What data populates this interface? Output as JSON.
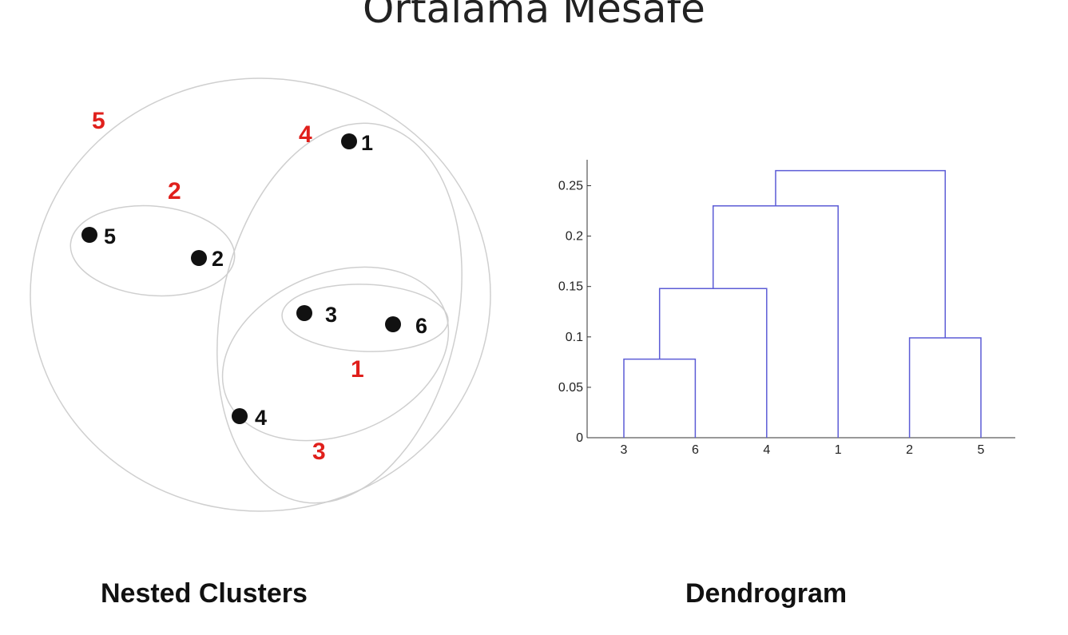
{
  "title": "Ortalama Mesafe",
  "colors": {
    "cluster_label": "#e0201c",
    "dendro_line": "#5c5cd6",
    "ellipse": "#cfcfcf",
    "point": "#111111"
  },
  "nested_clusters": {
    "caption": "Nested Clusters",
    "points": [
      {
        "id": "1",
        "label": "1"
      },
      {
        "id": "2",
        "label": "2"
      },
      {
        "id": "3",
        "label": "3"
      },
      {
        "id": "4",
        "label": "4"
      },
      {
        "id": "5",
        "label": "5"
      },
      {
        "id": "6",
        "label": "6"
      }
    ],
    "cluster_labels": [
      "1",
      "2",
      "3",
      "4",
      "5"
    ]
  },
  "dendrogram": {
    "caption": "Dendrogram"
  },
  "chart_data": {
    "type": "dendrogram",
    "leaf_order": [
      "3",
      "6",
      "4",
      "1",
      "2",
      "5"
    ],
    "y_ticks": [
      "0",
      "0.05",
      "0.1",
      "0.15",
      "0.2",
      "0.25"
    ],
    "ylim": [
      0,
      0.28
    ],
    "merges": [
      {
        "left": "3",
        "right": "6",
        "height": 0.078
      },
      {
        "left": "2",
        "right": "5",
        "height": 0.099
      },
      {
        "left": "3,6",
        "right": "4",
        "height": 0.148
      },
      {
        "left": "3,6,4",
        "right": "1",
        "height": 0.23
      },
      {
        "left": "3,6,4,1",
        "right": "2,5",
        "height": 0.265
      }
    ]
  }
}
